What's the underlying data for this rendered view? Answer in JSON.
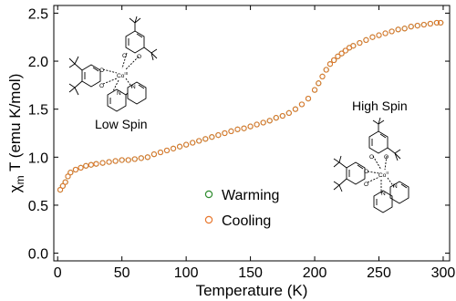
{
  "chart_data": {
    "type": "scatter",
    "xlabel": "Temperature (K)",
    "ylabel_main": "χ",
    "ylabel_sub": "m",
    "ylabel_rest": " T (emu K/mol)",
    "xlim": [
      -3,
      305
    ],
    "ylim": [
      -0.08,
      2.58
    ],
    "x_ticks": [
      0,
      50,
      100,
      150,
      200,
      250,
      300
    ],
    "y_ticks": [
      "0.0",
      "0.5",
      "1.0",
      "1.5",
      "2.0",
      "2.5"
    ],
    "grid": false,
    "legend_placement": "center",
    "series": [
      {
        "name": "Warming",
        "color": "#2e8b2e",
        "x": [
          2,
          4,
          6,
          8,
          10,
          14,
          18,
          22,
          26,
          30,
          35,
          40,
          45,
          50,
          55,
          60,
          65,
          70,
          75,
          80,
          85,
          90,
          95,
          100,
          105,
          110,
          115,
          120,
          125,
          130,
          135,
          140,
          145,
          150,
          155,
          160,
          165,
          170,
          175,
          180,
          185,
          190,
          195,
          200,
          203,
          206,
          209,
          212,
          215,
          218,
          221,
          224,
          227,
          230,
          235,
          240,
          245,
          250,
          255,
          260,
          265,
          270,
          275,
          280,
          285,
          290,
          295,
          298
        ],
        "y": [
          0.66,
          0.7,
          0.74,
          0.8,
          0.84,
          0.87,
          0.89,
          0.91,
          0.92,
          0.93,
          0.94,
          0.95,
          0.96,
          0.97,
          0.97,
          0.98,
          0.99,
          1.0,
          1.03,
          1.05,
          1.07,
          1.09,
          1.11,
          1.13,
          1.15,
          1.17,
          1.19,
          1.21,
          1.23,
          1.25,
          1.27,
          1.29,
          1.3,
          1.32,
          1.34,
          1.36,
          1.38,
          1.41,
          1.43,
          1.46,
          1.5,
          1.55,
          1.61,
          1.7,
          1.77,
          1.84,
          1.91,
          1.97,
          2.01,
          2.05,
          2.08,
          2.11,
          2.14,
          2.16,
          2.19,
          2.22,
          2.25,
          2.27,
          2.29,
          2.31,
          2.33,
          2.34,
          2.36,
          2.37,
          2.38,
          2.39,
          2.4,
          2.4
        ]
      },
      {
        "name": "Cooling",
        "color": "#e8772e",
        "x": [
          2,
          4,
          6,
          8,
          10,
          14,
          18,
          22,
          26,
          30,
          35,
          40,
          45,
          50,
          55,
          60,
          65,
          70,
          75,
          80,
          85,
          90,
          95,
          100,
          105,
          110,
          115,
          120,
          125,
          130,
          135,
          140,
          145,
          150,
          155,
          160,
          165,
          170,
          175,
          180,
          185,
          190,
          195,
          200,
          203,
          206,
          209,
          212,
          215,
          218,
          221,
          224,
          227,
          230,
          235,
          240,
          245,
          250,
          255,
          260,
          265,
          270,
          275,
          280,
          285,
          290,
          295,
          298
        ],
        "y": [
          0.66,
          0.7,
          0.74,
          0.8,
          0.84,
          0.87,
          0.89,
          0.91,
          0.92,
          0.93,
          0.94,
          0.95,
          0.96,
          0.97,
          0.97,
          0.98,
          0.99,
          1.0,
          1.03,
          1.05,
          1.07,
          1.09,
          1.11,
          1.13,
          1.15,
          1.17,
          1.19,
          1.21,
          1.23,
          1.25,
          1.27,
          1.29,
          1.3,
          1.32,
          1.34,
          1.36,
          1.38,
          1.41,
          1.43,
          1.46,
          1.5,
          1.55,
          1.61,
          1.7,
          1.77,
          1.84,
          1.91,
          1.97,
          2.01,
          2.05,
          2.08,
          2.11,
          2.14,
          2.16,
          2.19,
          2.22,
          2.25,
          2.27,
          2.29,
          2.31,
          2.33,
          2.34,
          2.36,
          2.37,
          2.38,
          2.39,
          2.4,
          2.4
        ]
      }
    ],
    "annotations": {
      "low_spin": "Low Spin",
      "high_spin": "High Spin",
      "low_spin_metal": "Co",
      "low_spin_ox": "III",
      "high_spin_metal": "Co",
      "high_spin_ox": "II",
      "ligand_n": "N",
      "ligand_o": "O"
    }
  }
}
